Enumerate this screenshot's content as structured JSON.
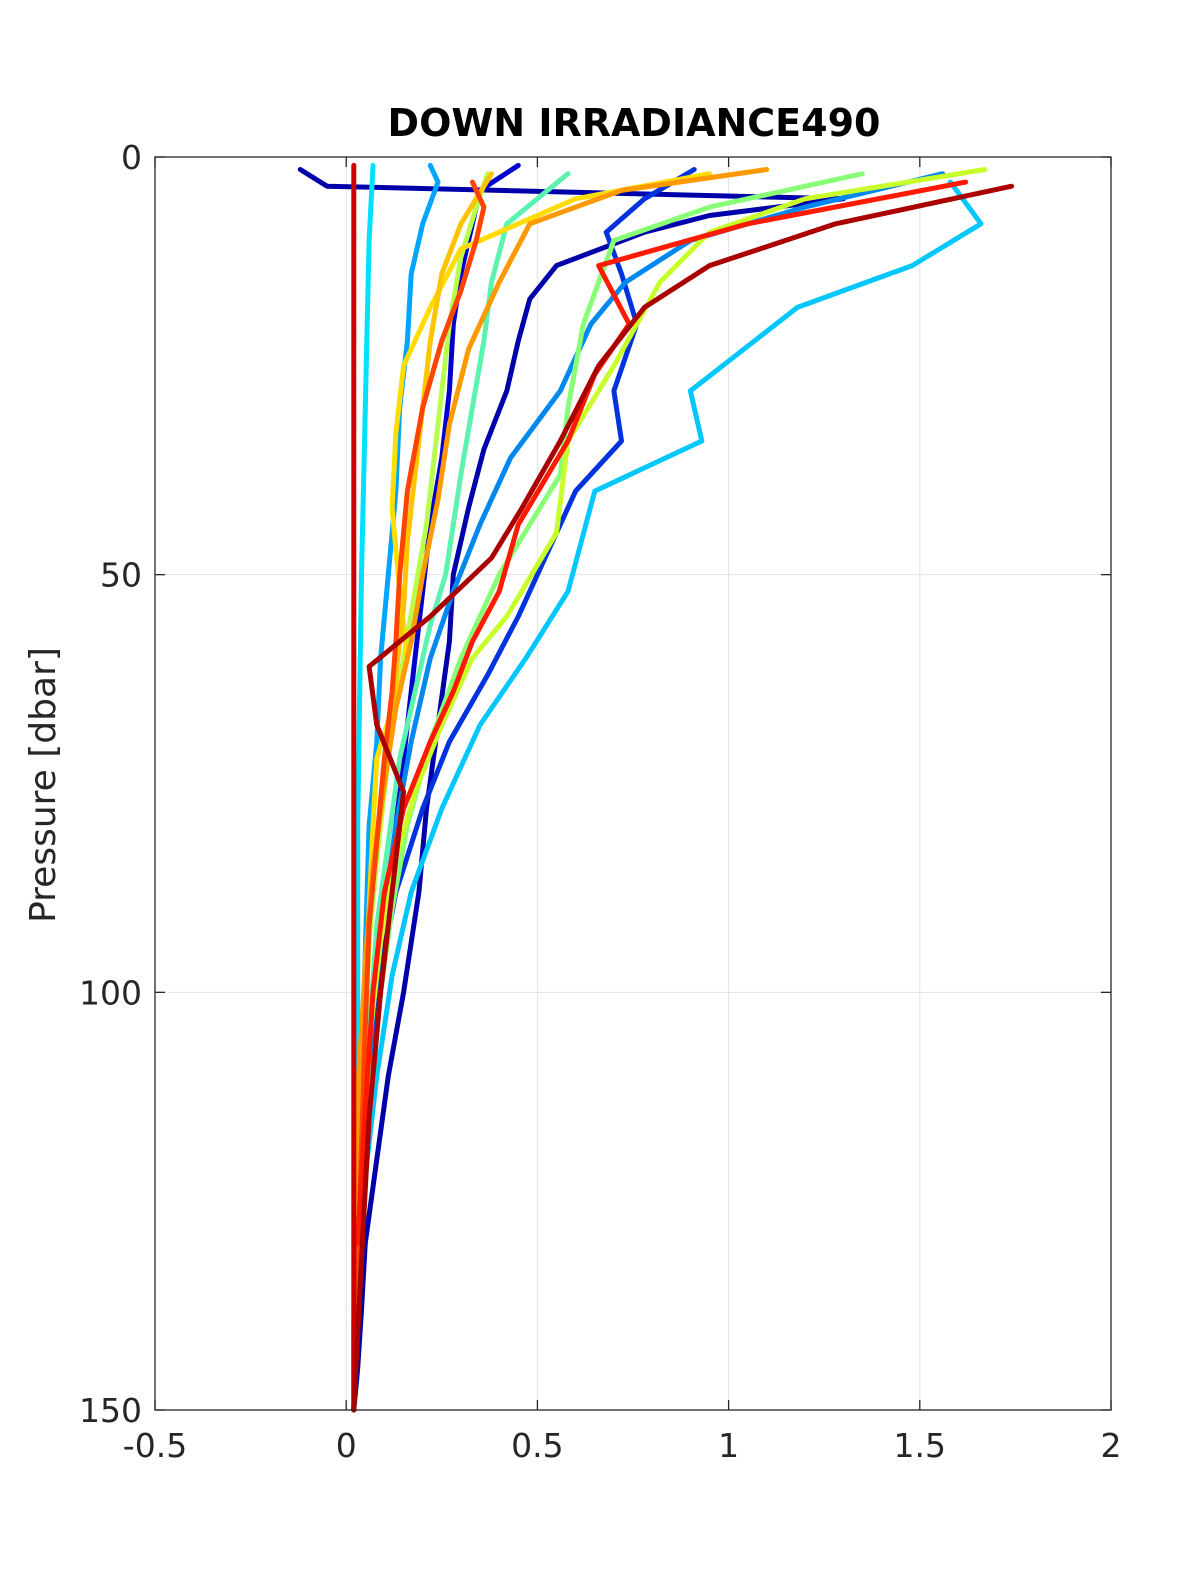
{
  "chart_data": {
    "type": "line",
    "title": "DOWN IRRADIANCE490",
    "xlabel": "",
    "ylabel": "Pressure [dbar]",
    "xlim": [
      -0.5,
      2
    ],
    "ylim": [
      0,
      150
    ],
    "y_reversed": true,
    "grid": true,
    "xticks": [
      -0.5,
      0,
      0.5,
      1,
      1.5,
      2
    ],
    "xtick_labels": [
      "-0.5",
      "0",
      "0.5",
      "1",
      "1.5",
      "2"
    ],
    "yticks": [
      0,
      50,
      100,
      150
    ],
    "ytick_labels": [
      "0",
      "50",
      "100",
      "150"
    ],
    "series": [
      {
        "color": "#0000aa",
        "x": [
          -0.12,
          -0.05,
          1.3,
          0.95,
          0.78,
          0.55,
          0.48,
          0.45,
          0.42,
          0.36,
          0.32,
          0.28,
          0.27,
          0.24,
          0.21,
          0.19,
          0.15,
          0.11,
          0.08,
          0.05,
          0.04,
          0.03,
          0.02,
          0.02
        ],
        "y": [
          1.5,
          3.5,
          5,
          7,
          9,
          13,
          17,
          22,
          28,
          35,
          42,
          50,
          58,
          68,
          78,
          88,
          100,
          110,
          120,
          130,
          138,
          145,
          150,
          150
        ]
      },
      {
        "color": "#0000cc",
        "x": [
          0.45,
          0.35,
          0.33,
          0.3,
          0.28,
          0.27,
          0.25,
          0.22,
          0.2,
          0.18,
          0.16,
          0.14,
          0.12,
          0.1,
          0.08,
          0.06,
          0.05,
          0.04,
          0.03,
          0.02
        ],
        "y": [
          1,
          4,
          8,
          14,
          20,
          28,
          36,
          44,
          52,
          60,
          68,
          76,
          84,
          92,
          100,
          110,
          120,
          130,
          140,
          150
        ]
      },
      {
        "color": "#0033dd",
        "x": [
          0.91,
          0.78,
          0.68,
          0.72,
          0.76,
          0.7,
          0.72,
          0.6,
          0.52,
          0.45,
          0.37,
          0.27,
          0.2,
          0.13,
          0.08,
          0.05,
          0.03,
          0.02
        ],
        "y": [
          1.5,
          5,
          9,
          14,
          20,
          28,
          34,
          40,
          48,
          55,
          62,
          70,
          78,
          88,
          100,
          115,
          132,
          150
        ]
      },
      {
        "color": "#0088ee",
        "x": [
          1.56,
          1.2,
          0.9,
          0.73,
          0.64,
          0.56,
          0.43,
          0.35,
          0.28,
          0.22,
          0.17,
          0.13,
          0.1,
          0.07,
          0.05,
          0.03,
          0.02
        ],
        "y": [
          2,
          6,
          10,
          15,
          20,
          28,
          36,
          44,
          52,
          60,
          70,
          80,
          90,
          102,
          115,
          130,
          150
        ]
      },
      {
        "color": "#00a5ff",
        "x": [
          0.22,
          0.24,
          0.2,
          0.17,
          0.16,
          0.14,
          0.13,
          0.11,
          0.09,
          0.08,
          0.06,
          0.05,
          0.04,
          0.03,
          0.02
        ],
        "y": [
          1,
          3,
          8,
          14,
          22,
          30,
          40,
          50,
          60,
          70,
          80,
          95,
          110,
          130,
          150
        ]
      },
      {
        "color": "#00c8ff",
        "x": [
          1.58,
          1.66,
          1.48,
          1.18,
          0.9,
          0.93,
          0.65,
          0.58,
          0.47,
          0.35,
          0.25,
          0.17,
          0.12,
          0.08,
          0.05,
          0.03,
          0.02
        ],
        "y": [
          3,
          8,
          13,
          18,
          28,
          34,
          40,
          52,
          60,
          68,
          78,
          88,
          98,
          110,
          122,
          136,
          150
        ]
      },
      {
        "color": "#00e0ff",
        "x": [
          0.07,
          0.06,
          0.05,
          0.04,
          0.03,
          0.03,
          0.02,
          0.02
        ],
        "y": [
          1,
          10,
          30,
          50,
          80,
          110,
          140,
          150
        ]
      },
      {
        "color": "#5cf2b0",
        "x": [
          0.58,
          0.42,
          0.38,
          0.36,
          0.33,
          0.3,
          0.28,
          0.26,
          0.22,
          0.18,
          0.14,
          0.11,
          0.08,
          0.06,
          0.04,
          0.03
        ],
        "y": [
          2,
          8,
          15,
          22,
          30,
          38,
          44,
          50,
          56,
          64,
          72,
          82,
          92,
          105,
          120,
          138
        ]
      },
      {
        "color": "#88ff77",
        "x": [
          1.35,
          0.95,
          0.7,
          0.62,
          0.58,
          0.56,
          0.48,
          0.4,
          0.3,
          0.22,
          0.16,
          0.12,
          0.09,
          0.07,
          0.05,
          0.04
        ],
        "y": [
          2,
          6,
          10,
          20,
          30,
          38,
          44,
          50,
          60,
          70,
          80,
          90,
          100,
          110,
          120,
          130
        ]
      },
      {
        "color": "#b8ff4d",
        "x": [
          0.37,
          0.34,
          0.3,
          0.27,
          0.25,
          0.23,
          0.21,
          0.18,
          0.15,
          0.12,
          0.1,
          0.08,
          0.06,
          0.05,
          0.04,
          0.03
        ],
        "y": [
          2,
          6,
          12,
          20,
          28,
          36,
          44,
          52,
          60,
          68,
          76,
          84,
          94,
          104,
          116,
          130
        ]
      },
      {
        "color": "#c8ff2a",
        "x": [
          1.67,
          1.2,
          0.95,
          0.82,
          0.7,
          0.58,
          0.55,
          0.42,
          0.33,
          0.25,
          0.18,
          0.13,
          0.09,
          0.06,
          0.05
        ],
        "y": [
          1.5,
          5,
          9,
          15,
          25,
          34,
          45,
          55,
          60,
          68,
          76,
          84,
          94,
          106,
          120
        ]
      },
      {
        "color": "#ffdd00",
        "x": [
          0.95,
          0.6,
          0.3,
          0.22,
          0.15,
          0.13,
          0.12,
          0.14,
          0.16,
          0.12,
          0.08,
          0.07,
          0.06,
          0.05,
          0.04,
          0.03
        ],
        "y": [
          2,
          5,
          11,
          18,
          25,
          33,
          42,
          52,
          60,
          66,
          72,
          80,
          90,
          100,
          110,
          120
        ]
      },
      {
        "color": "#ffc400",
        "x": [
          0.38,
          0.3,
          0.25,
          0.22,
          0.2,
          0.18,
          0.16,
          0.15,
          0.13,
          0.11,
          0.09,
          0.07,
          0.05,
          0.04,
          0.03,
          0.02
        ],
        "y": [
          2,
          8,
          14,
          22,
          30,
          38,
          46,
          54,
          62,
          70,
          78,
          86,
          96,
          108,
          122,
          138
        ]
      },
      {
        "color": "#ff9900",
        "x": [
          1.1,
          0.72,
          0.48,
          0.4,
          0.32,
          0.27,
          0.24,
          0.2,
          0.17,
          0.13,
          0.1,
          0.07,
          0.05,
          0.03,
          0.02
        ],
        "y": [
          1.5,
          4,
          8,
          15,
          23,
          32,
          41,
          50,
          58,
          66,
          75,
          85,
          97,
          112,
          130
        ]
      },
      {
        "color": "#ff4400",
        "x": [
          0.33,
          0.36,
          0.34,
          0.3,
          0.25,
          0.2,
          0.16,
          0.14,
          0.13,
          0.12,
          0.1,
          0.08,
          0.06,
          0.05,
          0.04,
          0.03,
          0.02
        ],
        "y": [
          3,
          6,
          10,
          16,
          22,
          30,
          40,
          50,
          58,
          64,
          72,
          82,
          92,
          104,
          118,
          134,
          150
        ]
      },
      {
        "color": "#ff1a00",
        "x": [
          1.62,
          1.05,
          0.66,
          0.74,
          0.65,
          0.58,
          0.45,
          0.4,
          0.33,
          0.28,
          0.22,
          0.15,
          0.1,
          0.07,
          0.05,
          0.03
        ],
        "y": [
          3,
          8,
          13,
          20,
          26,
          34,
          44,
          52,
          58,
          64,
          70,
          78,
          88,
          100,
          114,
          130
        ]
      },
      {
        "color": "#cc0000",
        "x": [
          0.02,
          0.02,
          0.02,
          0.02,
          0.02
        ],
        "y": [
          1,
          40,
          80,
          120,
          150
        ]
      },
      {
        "color": "#aa0000",
        "x": [
          1.74,
          1.28,
          0.95,
          0.78,
          0.66,
          0.56,
          0.46,
          0.38,
          0.22,
          0.06,
          0.08,
          0.15,
          0.12,
          0.09,
          0.06,
          0.04,
          0.02
        ],
        "y": [
          3.5,
          8,
          13,
          18,
          25,
          34,
          42,
          48,
          55,
          61,
          68,
          76,
          88,
          100,
          115,
          132,
          150
        ]
      }
    ]
  }
}
